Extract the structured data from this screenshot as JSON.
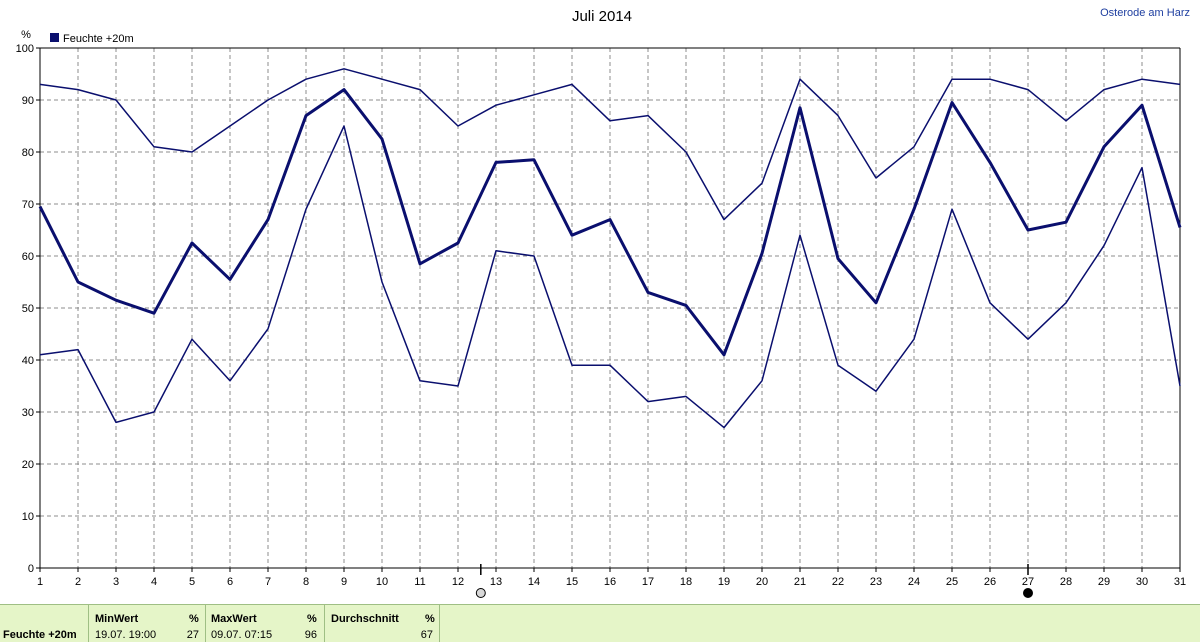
{
  "header": {
    "title": "Juli 2014",
    "location": "Osterode am Harz",
    "y_unit": "%"
  },
  "legend": {
    "label": "Feuchte +20m",
    "color": "#0a0f6e"
  },
  "chart_data": {
    "type": "line",
    "title": "Juli 2014",
    "xlabel": "",
    "ylabel": "%",
    "x": [
      1,
      2,
      3,
      4,
      5,
      6,
      7,
      8,
      9,
      10,
      11,
      12,
      13,
      14,
      15,
      16,
      17,
      18,
      19,
      20,
      21,
      22,
      23,
      24,
      25,
      26,
      27,
      28,
      29,
      30,
      31
    ],
    "xlim": [
      1,
      31
    ],
    "ylim": [
      0,
      100
    ],
    "yticks": [
      0,
      10,
      20,
      30,
      40,
      50,
      60,
      70,
      80,
      90,
      100
    ],
    "grid": true,
    "legend_position": "top-left",
    "series": [
      {
        "name": "Feuchte +20m",
        "role": "max",
        "values": [
          93,
          92,
          90,
          81,
          80,
          85,
          90,
          94,
          96,
          94,
          92,
          85,
          89,
          91,
          93,
          86,
          87,
          80,
          67,
          74,
          94,
          87,
          75,
          81,
          94,
          94,
          92,
          86,
          92,
          94,
          93
        ]
      },
      {
        "name": "Feuchte +20m",
        "role": "mean",
        "values": [
          69.5,
          55,
          51.5,
          49,
          62.5,
          55.5,
          67,
          87,
          92,
          82.5,
          58.5,
          62.5,
          78,
          78.5,
          64,
          67,
          53,
          50.5,
          41,
          60.5,
          88.5,
          59.5,
          51,
          69,
          89.5,
          78,
          65,
          66.5,
          81,
          89,
          65.5
        ]
      },
      {
        "name": "Feuchte +20m",
        "role": "min",
        "values": [
          41,
          42,
          28,
          30,
          44,
          36,
          46,
          69,
          85,
          55,
          36,
          35,
          61,
          60,
          39,
          39,
          32,
          33,
          27,
          36,
          64,
          39,
          34,
          44,
          69,
          51,
          44,
          51,
          62,
          77,
          35
        ]
      }
    ],
    "moon_markers": [
      {
        "x": 12.6,
        "phase": "full"
      },
      {
        "x": 27,
        "phase": "new"
      }
    ]
  },
  "stats": {
    "row_label": "Feuchte +20m",
    "min": {
      "header": "MinWert",
      "unit": "%",
      "when": "19.07.  19:00",
      "value": "27"
    },
    "max": {
      "header": "MaxWert",
      "unit": "%",
      "when": "09.07.  07:15",
      "value": "96"
    },
    "avg": {
      "header": "Durchschnitt",
      "unit": "%",
      "value": "67"
    }
  }
}
